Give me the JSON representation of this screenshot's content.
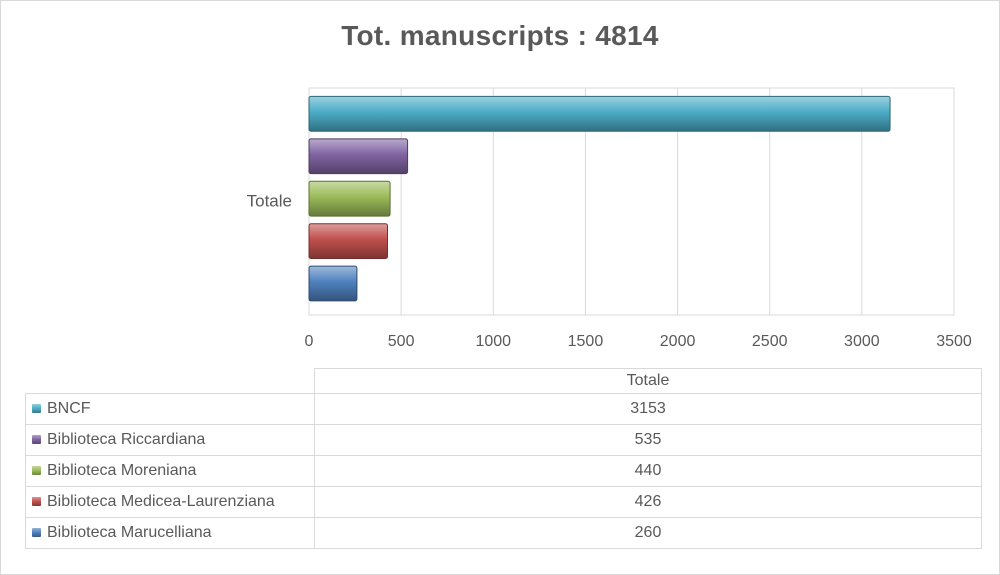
{
  "chart_data": {
    "type": "bar",
    "orientation": "horizontal",
    "title": "Tot. manuscripts  : 4814",
    "categories": [
      "Totale"
    ],
    "series": [
      {
        "name": "BNCF",
        "values": [
          3153
        ],
        "color": "#4bacc6"
      },
      {
        "name": "Biblioteca Riccardiana",
        "values": [
          535
        ],
        "color": "#8064a2"
      },
      {
        "name": "Biblioteca Moreniana",
        "values": [
          440
        ],
        "color": "#9bbb59"
      },
      {
        "name": "Biblioteca Medicea-Laurenziana",
        "values": [
          426
        ],
        "color": "#c0504d"
      },
      {
        "name": "Biblioteca Marucelliana",
        "values": [
          260
        ],
        "color": "#4f81bd"
      }
    ],
    "xlim": [
      0,
      3500
    ],
    "xticks": [
      "0",
      "500",
      "1000",
      "1500",
      "2000",
      "2500",
      "3000",
      "3500"
    ],
    "grid": true,
    "legend": "data table below chart",
    "table_header": "Totale"
  }
}
